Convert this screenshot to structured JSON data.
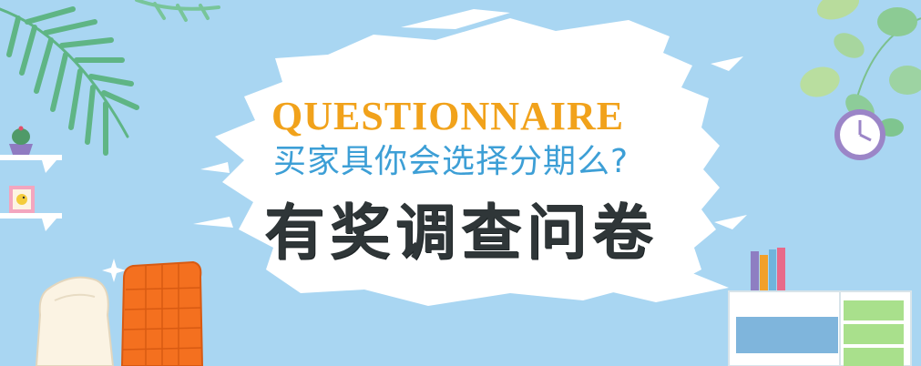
{
  "banner": {
    "headline_en": "QUESTIONNAIRE",
    "headline_cn": "买家具你会选择分期么?",
    "headline_main": "有奖调查问卷"
  },
  "colors": {
    "sky_background": "#a9d6f2",
    "accent_orange": "#f1a21b",
    "accent_blue": "#3d9fd6",
    "title_dark": "#2f3638"
  },
  "decorations": {
    "palm_leaf": "palm-leaf-icon",
    "green_leaves": "green-leaves-icon",
    "wall_clock": "wall-clock-icon",
    "wall_shelf": "wall-shelf-icon",
    "potted_plant": "potted-plant-icon",
    "picture_frame": "picture-frame-icon",
    "bird": "bird-icon",
    "sparkle": "sparkle-icon",
    "white_chair": "white-chair-icon",
    "orange_chair": "orange-chair-icon",
    "books": "books-icon",
    "desk": "desk-icon"
  }
}
